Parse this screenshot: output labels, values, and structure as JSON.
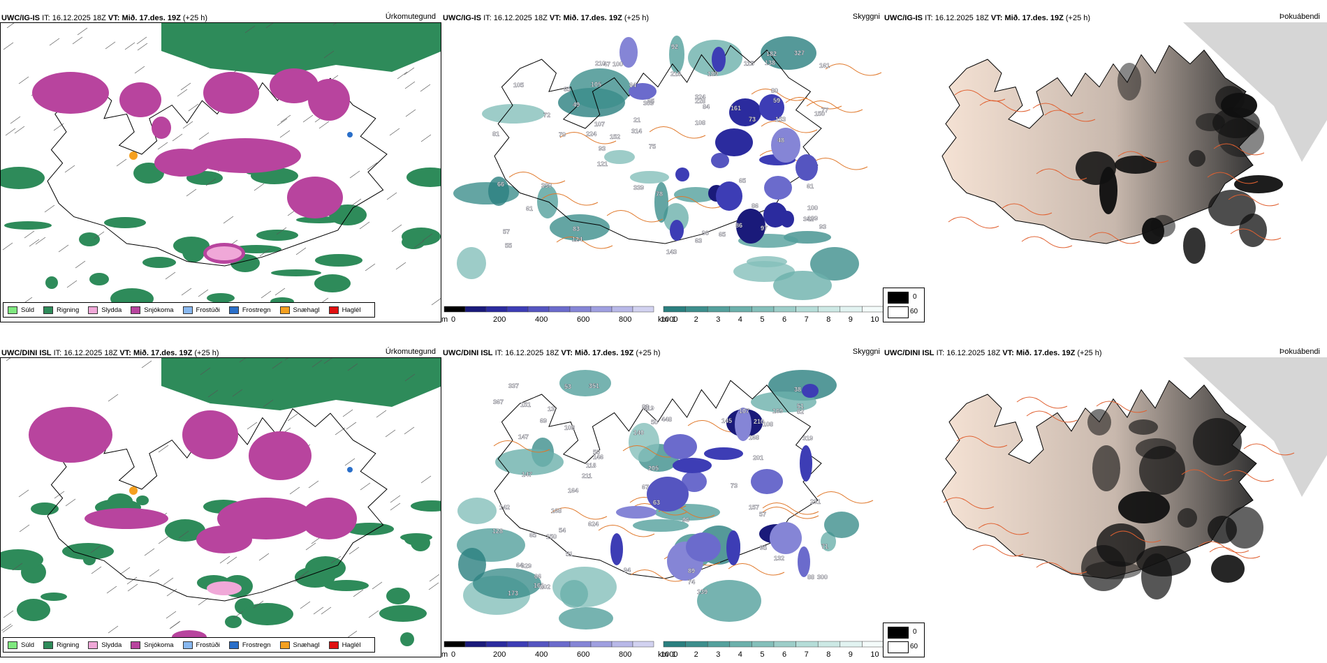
{
  "panels_per_row": {
    "precip_title": "Úrkomutegund",
    "vis_title": "Skyggni",
    "fog_title": "Þokuábendi"
  },
  "rows": [
    {
      "model": "UWC/IG-IS",
      "it_label": "IT:",
      "it_value": "16.12.2025 18Z",
      "vt_label": "VT:",
      "vt_value": "Mið. 17.des. 19Z",
      "lead": "(+25 h)",
      "vis_numbers": [
        "115",
        "314",
        "124",
        "327",
        "78",
        "61",
        "72",
        "86",
        "84",
        "59",
        "63",
        "189",
        "105",
        "93",
        "121",
        "48",
        "83",
        "93",
        "153",
        "161",
        "150",
        "324",
        "105",
        "108",
        "75",
        "90",
        "49",
        "73",
        "65",
        "70",
        "80",
        "86",
        "138",
        "81",
        "342",
        "339",
        "228",
        "65",
        "152",
        "161",
        "107",
        "100",
        "309",
        "330",
        "143",
        "100",
        "92",
        "21",
        "55",
        "97",
        "77",
        "182",
        "224",
        "218",
        "57",
        "210",
        "64",
        "66",
        "65",
        "109",
        "61",
        "47",
        "65"
      ]
    },
    {
      "model": "UWC/DINI ISL",
      "it_label": "IT:",
      "it_value": "16.12.2025 18Z",
      "vt_label": "VT:",
      "vt_value": "Mið. 17.des. 19Z",
      "lead": "(+25 h)",
      "vis_numbers": [
        "139",
        "231",
        "132",
        "128",
        "201",
        "319",
        "173",
        "73",
        "164",
        "151",
        "147",
        "64",
        "67",
        "53",
        "57",
        "205",
        "119",
        "107",
        "50",
        "66",
        "51",
        "108",
        "96",
        "89",
        "95",
        "65",
        "150",
        "210",
        "147",
        "624",
        "629",
        "169",
        "351",
        "337",
        "145",
        "448",
        "367",
        "300",
        "211",
        "118",
        "142",
        "51",
        "108",
        "168",
        "157",
        "102",
        "168",
        "13",
        "94",
        "161",
        "83",
        "50",
        "74",
        "88",
        "54",
        "63",
        "71",
        "140",
        "69",
        "38",
        "146",
        "82"
      ]
    }
  ],
  "precip_legend": [
    {
      "label": "Súld",
      "color": "#7fe87f"
    },
    {
      "label": "Rigning",
      "color": "#2e8b5a"
    },
    {
      "label": "Slydda",
      "color": "#f0a8d8"
    },
    {
      "label": "Snjókoma",
      "color": "#b8449e"
    },
    {
      "label": "Frostúði",
      "color": "#88b8f0"
    },
    {
      "label": "Frostregn",
      "color": "#2a6fc9"
    },
    {
      "label": "Snæhagl",
      "color": "#f5a020"
    },
    {
      "label": "Haglél",
      "color": "#e01010"
    }
  ],
  "vis_scale": {
    "m_unit": "m",
    "m_ticks": [
      "0",
      "200",
      "400",
      "600",
      "800",
      "1000"
    ],
    "m_colors": [
      "#000000",
      "#1a1a7a",
      "#2b2b9e",
      "#3d3db5",
      "#5555c0",
      "#6b6bcc",
      "#8585d6",
      "#9f9fe0",
      "#b8b8e8",
      "#d2d2f0"
    ],
    "km_unit": "km",
    "km_ticks": [
      "1",
      "2",
      "3",
      "4",
      "5",
      "6",
      "7",
      "8",
      "9",
      "10"
    ],
    "km_colors": [
      "#2a7f7f",
      "#3d8e8c",
      "#54a09c",
      "#6cb0ab",
      "#84bfba",
      "#9dcec9",
      "#b5ddd8",
      "#cde9e5",
      "#e2f3f1",
      "#f4fbfa"
    ]
  },
  "fog_legend": {
    "dark": "0",
    "light": "60"
  }
}
